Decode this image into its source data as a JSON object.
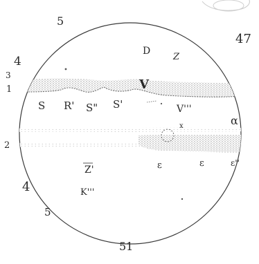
{
  "figure_number": "47",
  "edge_marks": {
    "top_left": "5",
    "upper_left": "4",
    "left_small_top": "3",
    "left_band_1": "1",
    "left_band_2": "2",
    "lower_left": "4",
    "bottom_left": "5",
    "bottom": "51"
  },
  "features": {
    "d": "D",
    "z_top": "Z",
    "v_main": "V",
    "s1": "S",
    "r_prime": "R'",
    "s_double": "S\"",
    "s_prime": "S'",
    "v_triple": "V'''",
    "alpha": "α",
    "x_small": "x",
    "z_prime": "Z'",
    "k_triple": "K'''",
    "e1": "ε",
    "e2": "ε",
    "e_prime": "ε''"
  },
  "colors": {
    "ink": "#2a2a2a",
    "band": "#bdbdbd",
    "band_dark": "#8f8f8f"
  }
}
